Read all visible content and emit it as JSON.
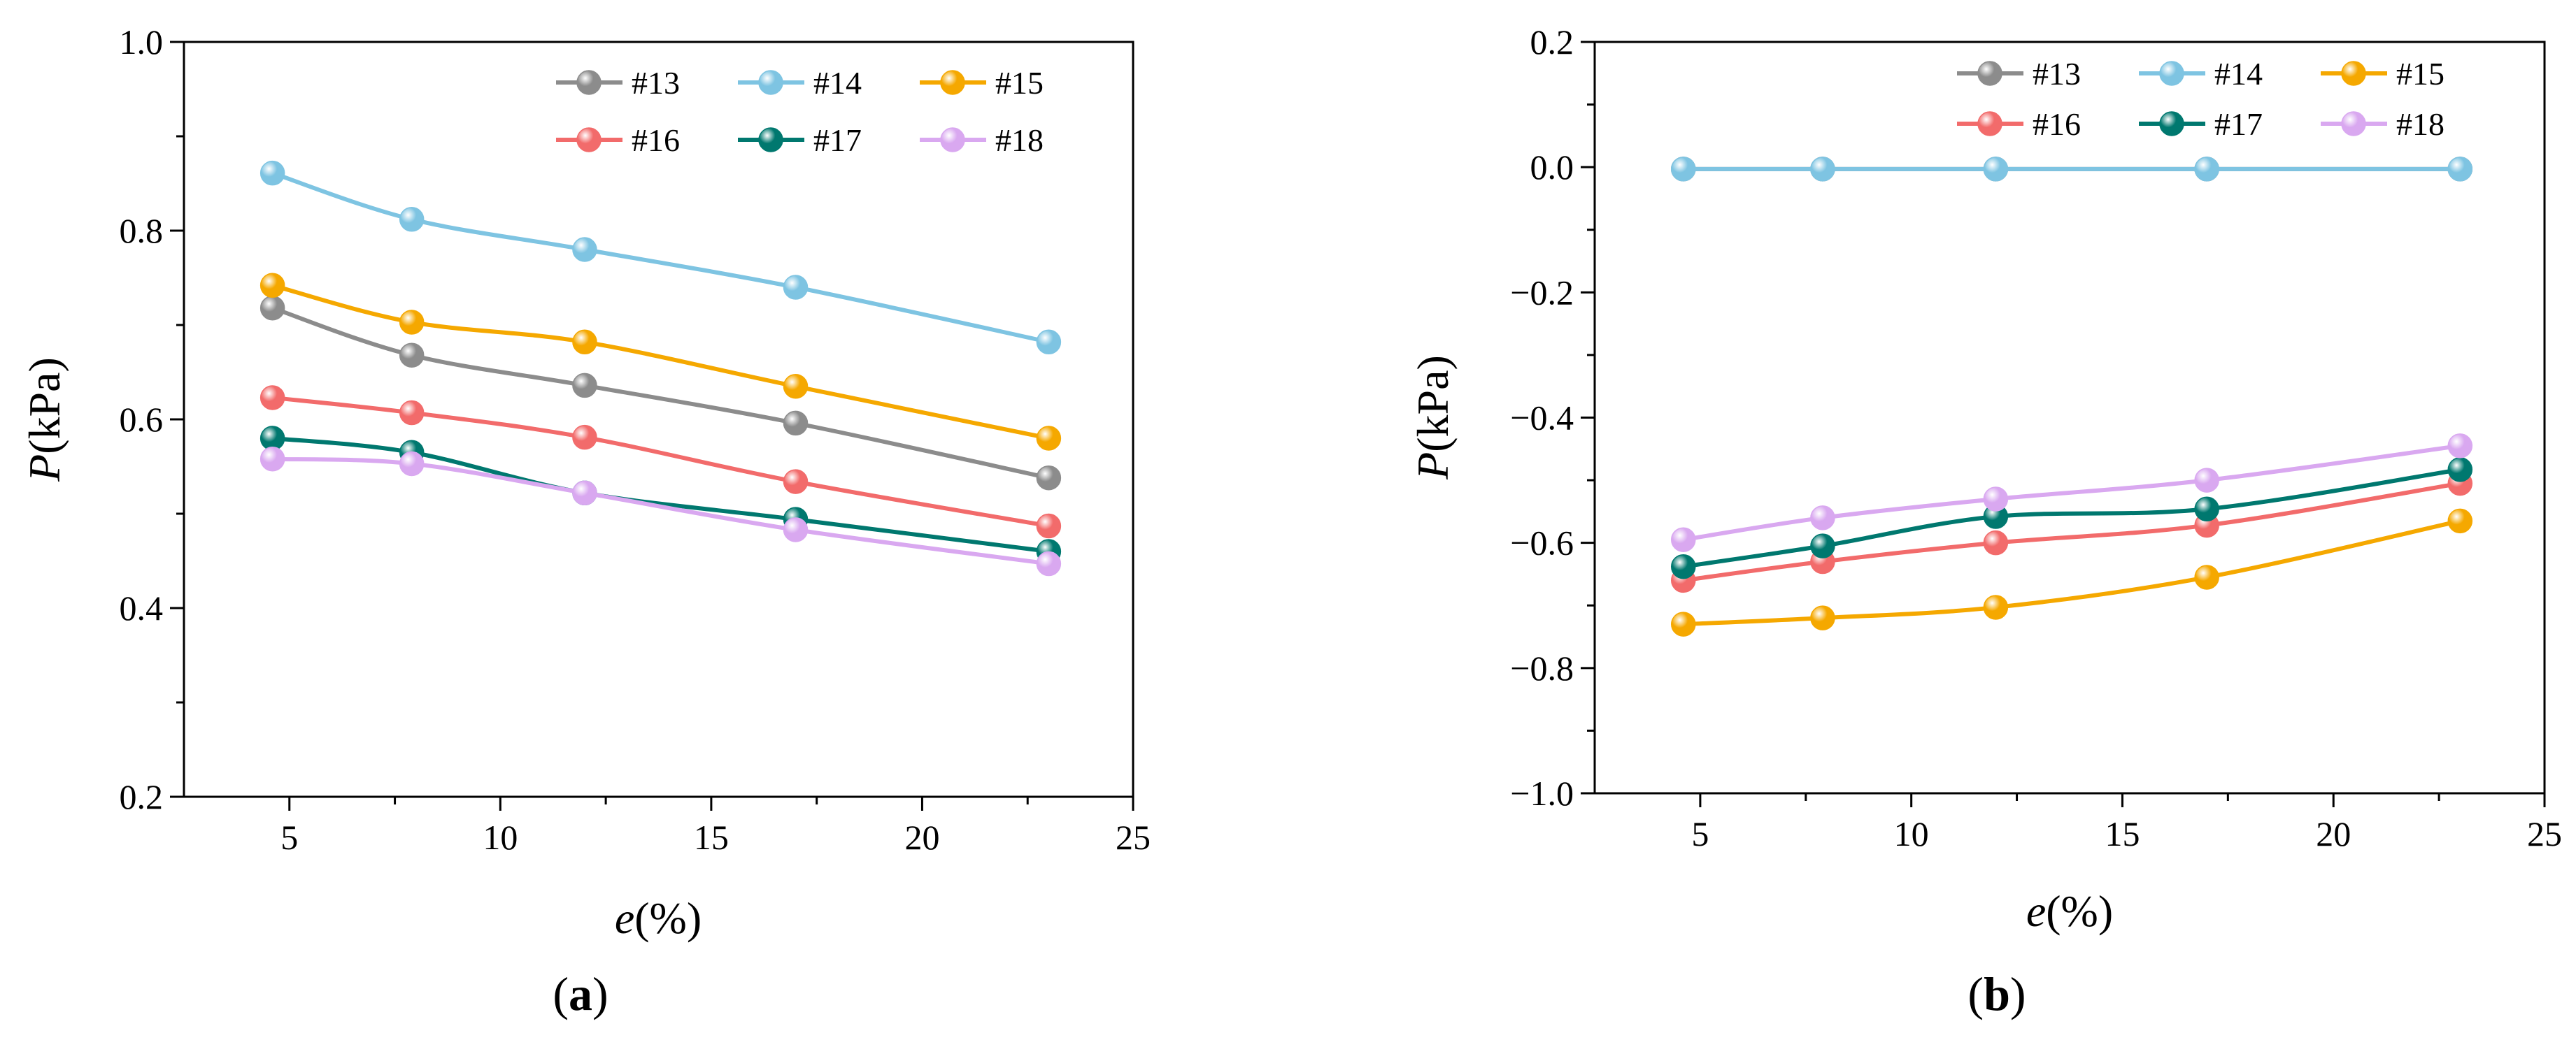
{
  "colors": {
    "#13": "#8c8c8c",
    "#14": "#7ec4e2",
    "#15": "#f5a800",
    "#16": "#f26b6b",
    "#17": "#00786f",
    "#18": "#d9a8f0"
  },
  "chart_data": [
    {
      "type": "line",
      "panel_label": {
        "open": "(",
        "letter": "a",
        "close": ")"
      },
      "xlabel": {
        "var": "e",
        "unit": "(%)"
      },
      "ylabel": {
        "var": "P",
        "unit": "(kPa)"
      },
      "xlim": [
        2.5,
        25
      ],
      "ylim": [
        0.2,
        1.0
      ],
      "xticks": [
        5,
        10,
        15,
        20,
        25
      ],
      "xtick_labels": [
        "5",
        "10",
        "15",
        "20",
        "25"
      ],
      "yticks": [
        0.2,
        0.4,
        0.6,
        0.8,
        1.0
      ],
      "ytick_labels": [
        "0.2",
        "0.4",
        "0.6",
        "0.8",
        "1.0"
      ],
      "legend_position": "top-right",
      "x": [
        4.6,
        7.9,
        12,
        17,
        23
      ],
      "series": [
        {
          "name": "#13",
          "values": [
            0.718,
            0.668,
            0.636,
            0.596,
            0.538
          ]
        },
        {
          "name": "#14",
          "values": [
            0.861,
            0.812,
            0.78,
            0.74,
            0.682
          ]
        },
        {
          "name": "#15",
          "values": [
            0.742,
            0.703,
            0.682,
            0.635,
            0.58
          ]
        },
        {
          "name": "#16",
          "values": [
            0.623,
            0.607,
            0.581,
            0.534,
            0.487
          ]
        },
        {
          "name": "#17",
          "values": [
            0.58,
            0.565,
            0.522,
            0.494,
            0.46
          ]
        },
        {
          "name": "#18",
          "values": [
            0.558,
            0.553,
            0.522,
            0.483,
            0.447
          ]
        }
      ]
    },
    {
      "type": "line",
      "panel_label": {
        "open": "(",
        "letter": "b",
        "close": ")"
      },
      "xlabel": {
        "var": "e",
        "unit": "(%)"
      },
      "ylabel": {
        "var": "P",
        "unit": "(kPa)"
      },
      "xlim": [
        2.5,
        25
      ],
      "ylim": [
        -1.0,
        0.2
      ],
      "xticks": [
        5,
        10,
        15,
        20,
        25
      ],
      "xtick_labels": [
        "5",
        "10",
        "15",
        "20",
        "25"
      ],
      "yticks": [
        -1.0,
        -0.8,
        -0.6,
        -0.4,
        -0.2,
        0.0,
        0.2
      ],
      "ytick_labels": [
        "−1.0",
        "−0.8",
        "−0.6",
        "−0.4",
        "−0.2",
        "0.0",
        "0.2"
      ],
      "legend_position": "top-right",
      "x": [
        4.6,
        7.9,
        12,
        17,
        23
      ],
      "series": [
        {
          "name": "#13",
          "values": [
            -0.003,
            -0.003,
            -0.003,
            -0.003,
            -0.003
          ]
        },
        {
          "name": "#14",
          "values": [
            -0.003,
            -0.003,
            -0.003,
            -0.003,
            -0.003
          ]
        },
        {
          "name": "#15",
          "values": [
            -0.73,
            -0.72,
            -0.703,
            -0.655,
            -0.565
          ]
        },
        {
          "name": "#16",
          "values": [
            -0.66,
            -0.63,
            -0.6,
            -0.572,
            -0.505
          ]
        },
        {
          "name": "#17",
          "values": [
            -0.638,
            -0.605,
            -0.558,
            -0.546,
            -0.483
          ]
        },
        {
          "name": "#18",
          "values": [
            -0.595,
            -0.56,
            -0.53,
            -0.5,
            -0.445
          ]
        }
      ]
    }
  ]
}
